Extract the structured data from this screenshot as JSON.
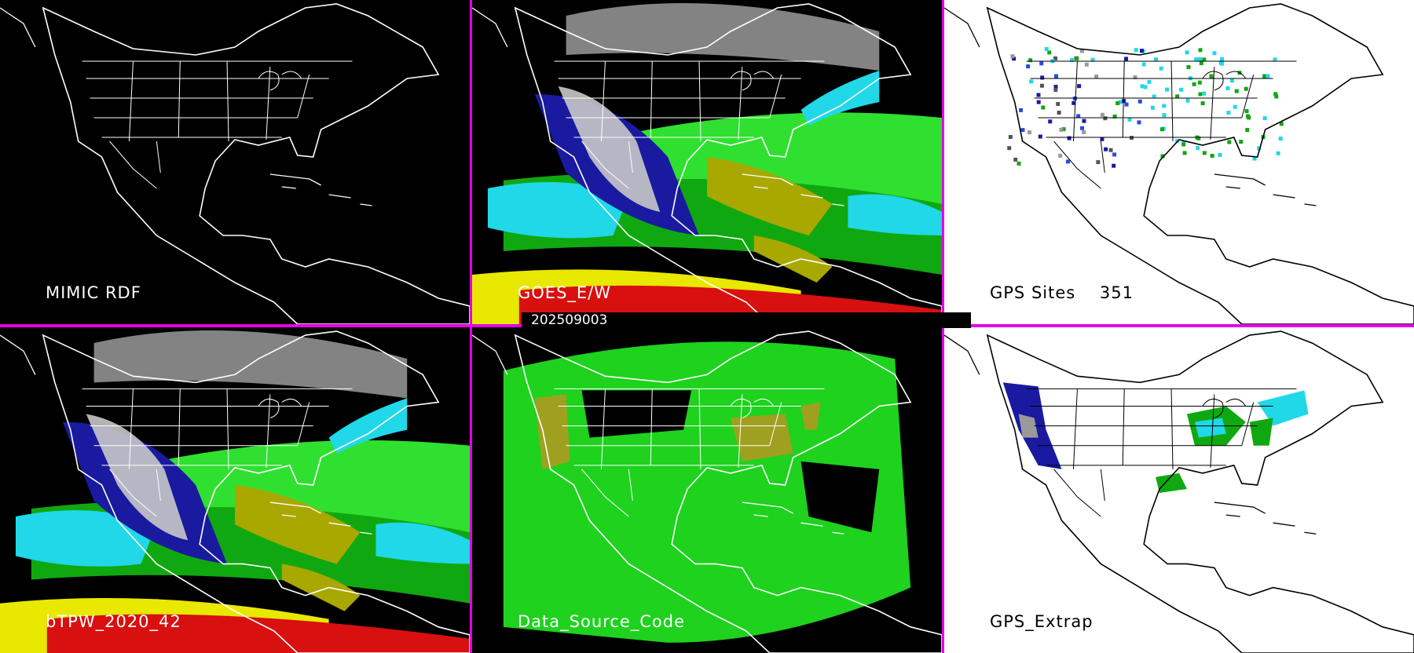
{
  "panels": [
    {
      "id": "mimic-rdf",
      "label": "MIMIC RDF",
      "background": "#000000",
      "line_color": "#ffffff",
      "layer": "none"
    },
    {
      "id": "goes-ew",
      "label": "GOES_E/W",
      "background": "#000000",
      "line_color": "#ffffff",
      "layer": "satellite"
    },
    {
      "id": "gps-sites",
      "label": "GPS Sites",
      "count": "351",
      "background": "#ffffff",
      "line_color": "#000000",
      "layer": "sites"
    },
    {
      "id": "btpw",
      "label": "bTPW_2020_42",
      "background": "#000000",
      "line_color": "#ffffff",
      "layer": "satellite"
    },
    {
      "id": "data-source",
      "label": "Data_Source_Code",
      "background": "#000000",
      "line_color": "#ffffff",
      "layer": "source"
    },
    {
      "id": "gps-extrap",
      "label": "GPS_Extrap",
      "background": "#ffffff",
      "line_color": "#000000",
      "layer": "extrap"
    }
  ],
  "timestamp": "202509003",
  "colors": {
    "divider": "#e600e6",
    "tpw_scale": [
      "#c8c8c8",
      "#1a1aa0",
      "#2a4ae0",
      "#20d8e8",
      "#10a810",
      "#30e030",
      "#a8a800",
      "#e8e800",
      "#d81010"
    ],
    "source_green": "#1ed21e",
    "source_olive": "#a0a020"
  }
}
